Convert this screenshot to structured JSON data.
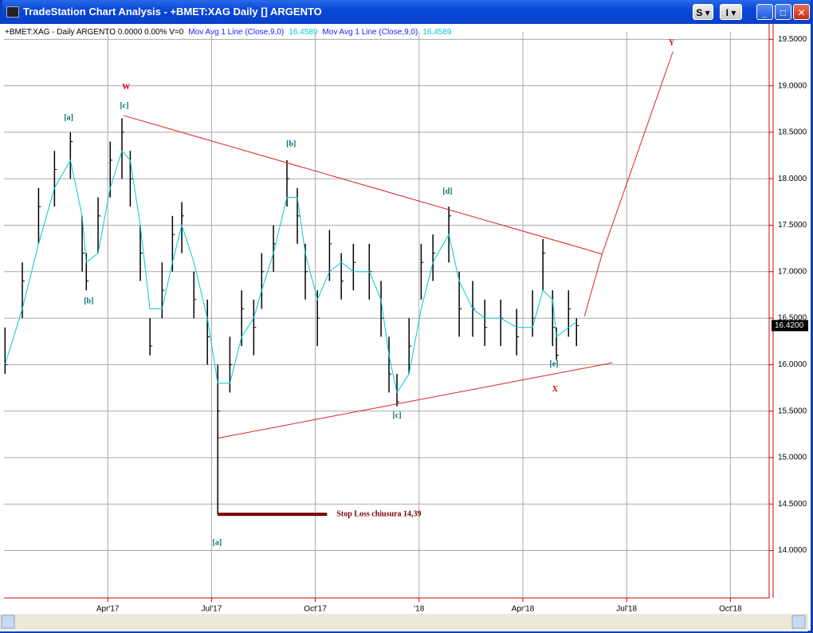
{
  "window": {
    "title": "TradeStation Chart Analysis - +BMET:XAG Daily [] ARGENTO",
    "buttons": [
      "S",
      "I"
    ]
  },
  "header": [
    {
      "text": "+BMET:XAG - Daily  ARGENTO  0.0000  0.00%  V=0",
      "color": "#000000"
    },
    {
      "text": "Mov Avg 1 Line (Close,9,0)",
      "color": "#1a1aff"
    },
    {
      "text": "16.4589",
      "color": "#00c8d8"
    },
    {
      "text": "Mov Avg 1 Line (Close,9,0)",
      "color": "#1a1aff"
    },
    {
      "text": "16.4589",
      "color": "#00c8d8"
    }
  ],
  "chart_data": {
    "type": "ohlc",
    "x": [
      0.03,
      0.53,
      1.0,
      1.46,
      1.92,
      2.26,
      2.38,
      2.72,
      3.07,
      3.41,
      3.65,
      3.94,
      4.22,
      4.57,
      4.87,
      5.14,
      5.49,
      5.88,
      6.18,
      6.53,
      6.87,
      7.22,
      7.45,
      7.79,
      8.18,
      8.48,
      8.71,
      9.06,
      9.41,
      9.75,
      10.1,
      10.56,
      10.9,
      11.13,
      11.36,
      11.71,
      12.06,
      12.4,
      12.86,
      13.16,
      13.55,
      13.9,
      14.36,
      14.82,
      15.28,
      15.58,
      15.86,
      15.97,
      16.32,
      16.55
    ],
    "high": [
      16.4,
      17.1,
      17.9,
      18.3,
      18.5,
      17.6,
      17.2,
      17.8,
      18.4,
      18.65,
      18.3,
      17.5,
      16.5,
      17.1,
      17.6,
      17.75,
      17.0,
      16.7,
      16.0,
      16.3,
      16.8,
      16.7,
      17.2,
      17.5,
      18.2,
      17.9,
      17.3,
      16.8,
      17.45,
      17.2,
      17.3,
      17.3,
      16.9,
      16.3,
      15.9,
      16.5,
      17.3,
      17.4,
      17.7,
      17.0,
      16.9,
      16.7,
      16.7,
      16.6,
      16.8,
      17.35,
      16.8,
      16.4,
      16.8,
      16.5
    ],
    "low": [
      15.9,
      16.5,
      17.3,
      17.7,
      18.0,
      17.0,
      16.8,
      17.2,
      17.8,
      18.0,
      17.7,
      16.9,
      16.1,
      16.5,
      17.0,
      17.2,
      16.5,
      16.0,
      14.39,
      15.7,
      16.2,
      16.1,
      16.6,
      17.0,
      17.7,
      17.3,
      16.7,
      16.2,
      16.9,
      16.7,
      16.8,
      16.7,
      16.3,
      15.7,
      15.55,
      15.9,
      16.7,
      16.9,
      17.1,
      16.3,
      16.3,
      16.2,
      16.2,
      16.1,
      16.3,
      16.8,
      16.2,
      16.05,
      16.3,
      16.2
    ],
    "close": [
      16.0,
      16.9,
      17.7,
      18.1,
      18.4,
      17.2,
      16.9,
      17.6,
      18.2,
      18.5,
      18.0,
      17.2,
      16.2,
      16.8,
      17.4,
      17.6,
      16.7,
      16.3,
      15.5,
      16.0,
      16.6,
      16.4,
      17.0,
      17.3,
      18.0,
      17.6,
      17.0,
      16.5,
      17.3,
      16.9,
      17.1,
      17.0,
      16.5,
      15.9,
      15.6,
      16.2,
      17.1,
      17.2,
      17.6,
      16.6,
      16.6,
      16.4,
      16.5,
      16.3,
      16.5,
      17.2,
      16.4,
      16.1,
      16.6,
      16.42
    ],
    "bar_color": "#000000",
    "moving_average": {
      "values": [
        16.0,
        16.6,
        17.3,
        17.9,
        18.2,
        17.6,
        17.1,
        17.2,
        17.9,
        18.3,
        18.2,
        17.5,
        16.6,
        16.6,
        17.1,
        17.5,
        17.1,
        16.5,
        15.8,
        15.8,
        16.3,
        16.5,
        16.8,
        17.2,
        17.8,
        17.8,
        17.2,
        16.7,
        17.0,
        17.1,
        17.0,
        17.0,
        16.7,
        16.1,
        15.7,
        15.9,
        16.6,
        17.1,
        17.4,
        16.9,
        16.6,
        16.5,
        16.5,
        16.4,
        16.4,
        16.8,
        16.7,
        16.3,
        16.4,
        16.4589
      ],
      "color": "#00c8d8"
    },
    "last_price": {
      "value": 16.42,
      "label": "16.4200"
    },
    "xlim": [
      0,
      22.12
    ],
    "xticks": [
      {
        "value": 3,
        "label": "Apr'17"
      },
      {
        "value": 6,
        "label": "Jul'17"
      },
      {
        "value": 9,
        "label": "Oct'17"
      },
      {
        "value": 12,
        "label": "'18"
      },
      {
        "value": 15,
        "label": "Apr'18"
      },
      {
        "value": 18,
        "label": "Jul'18"
      },
      {
        "value": 21,
        "label": "Oct'18"
      }
    ],
    "ylim": [
      13.49,
      19.58
    ],
    "yticks": [
      {
        "value": 14,
        "label": "14.0000"
      },
      {
        "value": 14.5,
        "label": "14.5000"
      },
      {
        "value": 15,
        "label": "15.0000"
      },
      {
        "value": 15.5,
        "label": "15.5000"
      },
      {
        "value": 16,
        "label": "16.0000"
      },
      {
        "value": 16.5,
        "label": "16.5000"
      },
      {
        "value": 17,
        "label": "17.0000"
      },
      {
        "value": 17.5,
        "label": "17.5000"
      },
      {
        "value": 18,
        "label": "18.0000"
      },
      {
        "value": 18.5,
        "label": "18.5000"
      },
      {
        "value": 19,
        "label": "19.0000"
      },
      {
        "value": 19.5,
        "label": "19.5000"
      }
    ],
    "grid": true,
    "trend_lines": [
      {
        "x": [
          3.46,
          17.29
        ],
        "y": [
          18.68,
          17.19
        ],
        "color": "#e02020"
      },
      {
        "x": [
          6.2,
          17.59
        ],
        "y": [
          15.21,
          16.02
        ],
        "color": "#e02020"
      },
      {
        "x": [
          16.78,
          17.29,
          19.34
        ],
        "y": [
          16.52,
          17.19,
          19.37
        ],
        "color": "#e02020"
      }
    ],
    "stop_loss": {
      "x": [
        6.18,
        9.34
      ],
      "value": 14.39,
      "label": "Stop Loss chiusura 14,39",
      "color": "#7a0000"
    },
    "annotations": [
      {
        "text": "W",
        "x": 3.53,
        "y": 18.98,
        "color": "#e00000"
      },
      {
        "text": "[c]",
        "x": 3.48,
        "y": 18.78,
        "color": "#007070"
      },
      {
        "text": "[a]",
        "x": 1.87,
        "y": 18.65,
        "color": "#007070"
      },
      {
        "text": "[b]",
        "x": 2.45,
        "y": 16.68,
        "color": "#007070"
      },
      {
        "text": "[b]",
        "x": 8.3,
        "y": 18.37,
        "color": "#007070"
      },
      {
        "text": "[d]",
        "x": 12.82,
        "y": 17.86,
        "color": "#007070"
      },
      {
        "text": "[c]",
        "x": 11.36,
        "y": 15.45,
        "color": "#007070"
      },
      {
        "text": "[e]",
        "x": 15.9,
        "y": 16.0,
        "color": "#007070"
      },
      {
        "text": "X",
        "x": 15.93,
        "y": 15.73,
        "color": "#e00000"
      },
      {
        "text": "Y",
        "x": 19.3,
        "y": 19.46,
        "color": "#e00000"
      },
      {
        "text": "[a]",
        "x": 6.16,
        "y": 14.08,
        "color": "#007070"
      }
    ]
  }
}
